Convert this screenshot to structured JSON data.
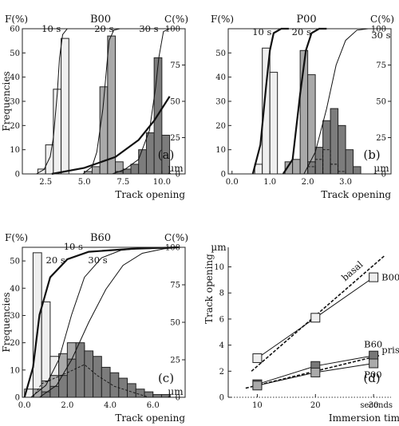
{
  "chart_data": [
    {
      "panel": "(a)",
      "type": "bar",
      "title": "B00",
      "xlabel": "Track opening",
      "xunit": "µm",
      "left_axis": "F(%)",
      "right_axis": "C(%)",
      "ylabel": "Frequencies",
      "xlim": [
        1.0,
        11.5
      ],
      "ylim_left": [
        0,
        60
      ],
      "ylim_right": [
        0,
        100
      ],
      "xticks": [
        "2.5",
        "5.0",
        "7.5",
        "10.0"
      ],
      "yticks_left": [
        "0",
        "10",
        "20",
        "30",
        "40",
        "50",
        "60"
      ],
      "yticks_right": [
        "0",
        "25",
        "50",
        "75",
        "100"
      ],
      "bin_width": 0.5,
      "series": [
        {
          "name": "10 s",
          "bins": [
            [
              2.0,
              2
            ],
            [
              2.5,
              12
            ],
            [
              3.0,
              35
            ],
            [
              3.5,
              56
            ]
          ],
          "cumulative": [
            [
              1.9,
              0
            ],
            [
              2.4,
              3
            ],
            [
              2.8,
              12
            ],
            [
              3.0,
              25
            ],
            [
              3.25,
              55
            ],
            [
              3.4,
              80
            ],
            [
              3.6,
              96
            ],
            [
              3.9,
              100
            ],
            [
              4.4,
              100
            ]
          ]
        },
        {
          "name": "20 s",
          "bins": [
            [
              5.0,
              1
            ],
            [
              5.5,
              3
            ],
            [
              6.0,
              36
            ],
            [
              6.5,
              57
            ],
            [
              7.0,
              5
            ]
          ],
          "cumulative": [
            [
              4.9,
              0
            ],
            [
              5.5,
              5
            ],
            [
              5.8,
              15
            ],
            [
              6.2,
              45
            ],
            [
              6.45,
              75
            ],
            [
              6.6,
              92
            ],
            [
              6.9,
              99
            ],
            [
              7.3,
              100
            ],
            [
              7.8,
              100
            ]
          ]
        },
        {
          "name": "30 s",
          "bins": [
            [
              7.0,
              1
            ],
            [
              7.5,
              2
            ],
            [
              8.0,
              4
            ],
            [
              8.5,
              10
            ],
            [
              9.0,
              17
            ],
            [
              9.5,
              48
            ],
            [
              10.0,
              16
            ]
          ],
          "cumulative": [
            [
              6.8,
              0
            ],
            [
              7.6,
              3
            ],
            [
              8.5,
              10
            ],
            [
              9.2,
              30
            ],
            [
              9.6,
              60
            ],
            [
              9.8,
              80
            ],
            [
              10.1,
              98
            ],
            [
              10.5,
              100
            ]
          ]
        }
      ],
      "highlight_curve": [
        [
          2.9,
          0
        ],
        [
          5.0,
          2.5
        ],
        [
          7.0,
          7
        ],
        [
          8.5,
          14
        ],
        [
          9.5,
          22
        ],
        [
          10.5,
          32
        ]
      ]
    },
    {
      "panel": "(b)",
      "type": "bar",
      "title": "P00",
      "xlabel": "Track opening",
      "xunit": "µm",
      "left_axis": "F(%)",
      "right_axis": "C(%)",
      "xlim": [
        -0.1,
        4.2
      ],
      "ylim_left": [
        0,
        60
      ],
      "ylim_right": [
        0,
        100
      ],
      "xticks": [
        "0.0",
        "1.0",
        "2.0",
        "3.0"
      ],
      "yticks_left": [
        "0",
        "10",
        "20",
        "30",
        "40",
        "50"
      ],
      "yticks_right": [
        "0",
        "25",
        "50",
        "75",
        "100"
      ],
      "bin_width": 0.2,
      "series": [
        {
          "name": "10 s",
          "bins": [
            [
              0.6,
              4
            ],
            [
              0.8,
              52
            ],
            [
              1.0,
              42
            ]
          ],
          "cumulative": [
            [
              0.55,
              0
            ],
            [
              0.75,
              20
            ],
            [
              0.9,
              60
            ],
            [
              1.0,
              85
            ],
            [
              1.1,
              97
            ],
            [
              1.3,
              100
            ],
            [
              1.5,
              100
            ]
          ]
        },
        {
          "name": "20 s",
          "bins": [
            [
              1.4,
              5
            ],
            [
              1.6,
              6
            ],
            [
              1.8,
              51
            ],
            [
              2.0,
              41
            ],
            [
              2.2,
              4
            ]
          ],
          "cumulative": [
            [
              1.35,
              0
            ],
            [
              1.6,
              10
            ],
            [
              1.8,
              55
            ],
            [
              1.95,
              85
            ],
            [
              2.1,
              97
            ],
            [
              2.3,
              100
            ],
            [
              2.5,
              100
            ]
          ]
        },
        {
          "name": "30 s",
          "bins": [
            [
              2.0,
              5
            ],
            [
              2.2,
              11
            ],
            [
              2.4,
              22
            ],
            [
              2.6,
              27
            ],
            [
              2.8,
              20
            ],
            [
              3.0,
              10
            ],
            [
              3.2,
              3
            ]
          ],
          "cumulative": [
            [
              1.9,
              0
            ],
            [
              2.2,
              15
            ],
            [
              2.5,
              45
            ],
            [
              2.75,
              75
            ],
            [
              3.0,
              92
            ],
            [
              3.3,
              99
            ],
            [
              3.6,
              100
            ]
          ]
        }
      ],
      "outline_bins": [
        [
          2.0,
          3
        ],
        [
          2.2,
          6
        ],
        [
          2.4,
          10
        ],
        [
          2.6,
          4
        ],
        [
          2.8,
          1
        ]
      ]
    },
    {
      "panel": "(c)",
      "type": "bar",
      "title": "B60",
      "xlabel": "Track opening",
      "xunit": "µm",
      "left_axis": "F(%)",
      "right_axis": "C(%)",
      "ylabel": "Frequencies",
      "xlim": [
        -0.1,
        7.5
      ],
      "ylim_left": [
        0,
        55
      ],
      "ylim_right": [
        0,
        100
      ],
      "xticks": [
        "0.0",
        "2.0",
        "4.0",
        "6.0"
      ],
      "yticks_left": [
        "0",
        "10",
        "20",
        "30",
        "40",
        "50"
      ],
      "yticks_right": [
        "0",
        "25",
        "50",
        "75",
        "100"
      ],
      "bin_width": 0.4,
      "series": [
        {
          "name": "10 s",
          "bins": [
            [
              0.0,
              3
            ],
            [
              0.4,
              53
            ],
            [
              0.8,
              35
            ],
            [
              1.2,
              15
            ],
            [
              1.6,
              6
            ],
            [
              2.0,
              3
            ],
            [
              2.4,
              1
            ]
          ],
          "cumulative": [
            [
              0.0,
              0
            ],
            [
              0.4,
              20
            ],
            [
              0.7,
              55
            ],
            [
              1.2,
              80
            ],
            [
              2.0,
              92
            ],
            [
              3.0,
              97
            ],
            [
              5.0,
              99
            ],
            [
              7.2,
              100
            ]
          ]
        },
        {
          "name": "20 s",
          "bins": [
            [
              0.4,
              3
            ],
            [
              0.8,
              6
            ],
            [
              1.2,
              8
            ],
            [
              1.6,
              16
            ],
            [
              2.0,
              20
            ],
            [
              2.4,
              19
            ],
            [
              2.8,
              12
            ],
            [
              3.2,
              6
            ],
            [
              3.6,
              3
            ],
            [
              4.0,
              2
            ],
            [
              4.4,
              1
            ]
          ],
          "cumulative": [
            [
              0.3,
              0
            ],
            [
              1.0,
              8
            ],
            [
              1.6,
              25
            ],
            [
              2.2,
              55
            ],
            [
              2.8,
              80
            ],
            [
              3.6,
              93
            ],
            [
              4.5,
              98
            ],
            [
              6.0,
              100
            ]
          ]
        },
        {
          "name": "30 s",
          "bins": [
            [
              0.8,
              2
            ],
            [
              1.2,
              4
            ],
            [
              1.6,
              8
            ],
            [
              2.0,
              14
            ],
            [
              2.4,
              20
            ],
            [
              2.8,
              17
            ],
            [
              3.2,
              15
            ],
            [
              3.6,
              11
            ],
            [
              4.0,
              9
            ],
            [
              4.4,
              7
            ],
            [
              4.8,
              5
            ],
            [
              5.2,
              3
            ],
            [
              5.6,
              2
            ],
            [
              6.0,
              1
            ],
            [
              6.4,
              1
            ]
          ],
          "cumulative": [
            [
              0.7,
              0
            ],
            [
              1.5,
              8
            ],
            [
              2.2,
              25
            ],
            [
              3.0,
              50
            ],
            [
              3.8,
              72
            ],
            [
              4.6,
              88
            ],
            [
              5.5,
              96
            ],
            [
              6.5,
              99
            ],
            [
              7.3,
              100
            ]
          ]
        }
      ],
      "dashed_curve": [
        [
          0.4,
          0
        ],
        [
          0.8,
          5
        ],
        [
          1.4,
          7
        ],
        [
          2.0,
          9
        ],
        [
          2.8,
          12
        ],
        [
          3.4,
          8
        ],
        [
          4.2,
          4
        ],
        [
          5.0,
          2
        ],
        [
          5.8,
          0
        ]
      ]
    },
    {
      "panel": "(d)",
      "type": "line",
      "xlabel": "Immersion time",
      "ylabel": "Track opening",
      "xunit": "seconds",
      "yunit": "µm",
      "xlim": [
        5,
        33
      ],
      "ylim": [
        0,
        11.5
      ],
      "x": [
        10,
        20,
        30
      ],
      "xticks": [
        "10",
        "20",
        "30"
      ],
      "yticks": [
        "0",
        "2",
        "4",
        "6",
        "8",
        "10"
      ],
      "series": [
        {
          "name": "B00",
          "values": [
            3.0,
            6.1,
            9.2
          ],
          "color": "#eeeeee"
        },
        {
          "name": "B60",
          "values": [
            1.0,
            2.4,
            3.2
          ],
          "color": "#777777"
        },
        {
          "name": "P00",
          "values": [
            0.9,
            1.9,
            2.6
          ],
          "color": "#aaaaaa"
        }
      ],
      "reference_lines": [
        {
          "name": "basal",
          "from": [
            9,
            2.0
          ],
          "to": [
            32,
            10.9
          ]
        },
        {
          "name": "prism",
          "from": [
            8,
            0.7
          ],
          "to": [
            31,
            3.2
          ]
        }
      ]
    }
  ]
}
